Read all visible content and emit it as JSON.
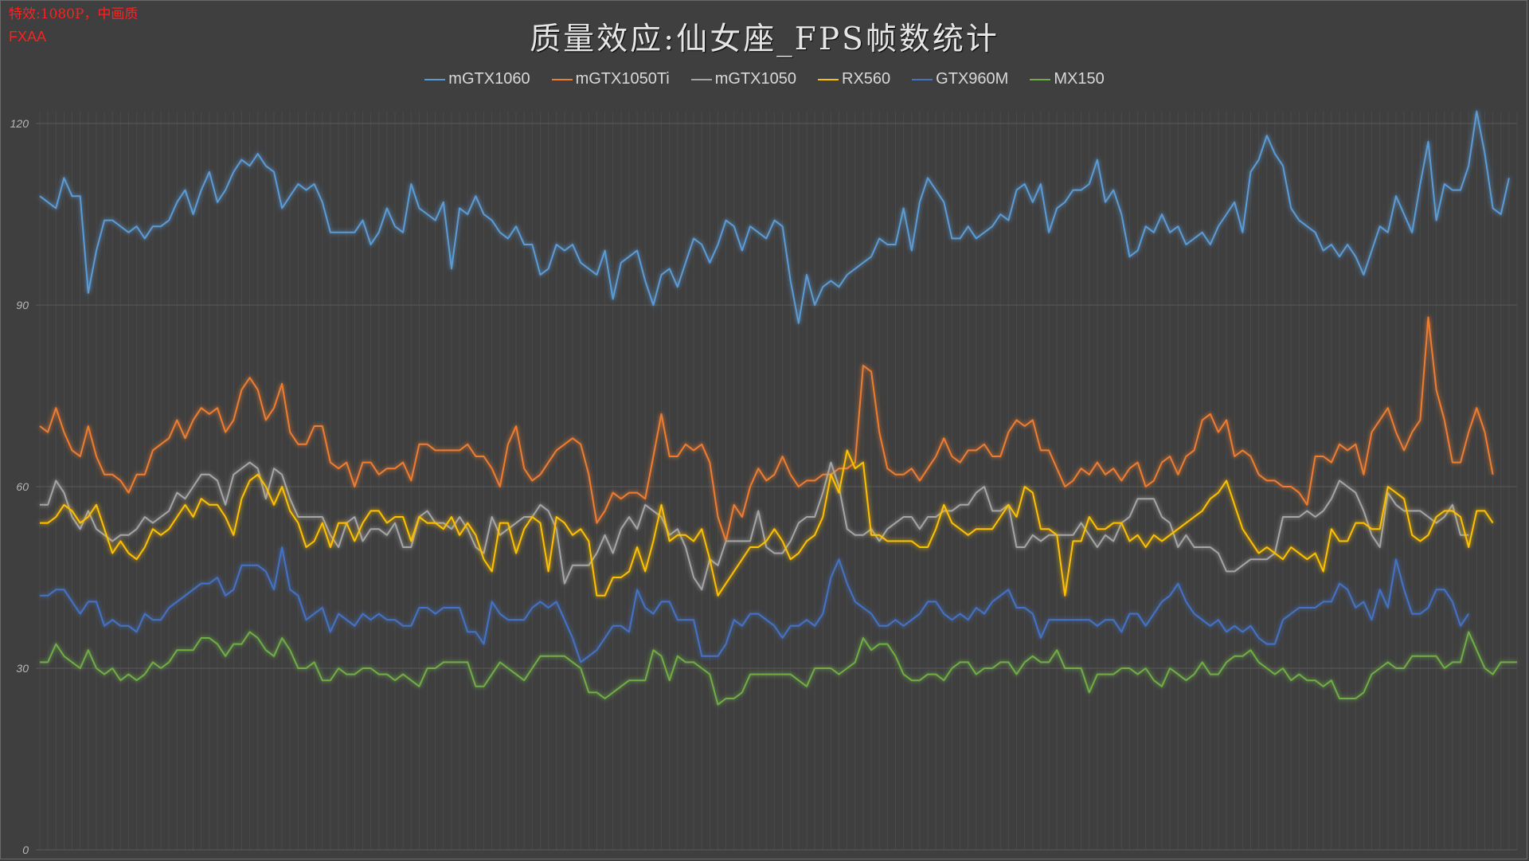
{
  "settings": {
    "line1": "特效:1080P，中画质",
    "line2": "FXAA"
  },
  "chart_data": {
    "type": "line",
    "title": "质量效应:仙女座_FPS帧数统计",
    "xlabel": "",
    "ylabel": "",
    "ylim": [
      0,
      120
    ],
    "yticks": [
      0,
      30,
      60,
      90,
      120
    ],
    "grid": true,
    "legend": "top-center",
    "series": [
      {
        "name": "mGTX1060",
        "color": "#5b9bd5",
        "values": [
          108,
          107,
          106,
          111,
          108,
          108,
          92,
          99,
          104,
          104,
          103,
          102,
          103,
          101,
          103,
          103,
          104,
          107,
          109,
          105,
          109,
          112,
          107,
          109,
          112,
          114,
          113,
          115,
          113,
          112,
          106,
          108,
          110,
          109,
          110,
          107,
          102,
          102,
          102,
          102,
          104,
          100,
          102,
          106,
          103,
          102,
          110,
          106,
          105,
          104,
          107,
          96,
          106,
          105,
          108,
          105,
          104,
          102,
          101,
          103,
          100,
          100,
          95,
          96,
          100,
          99,
          100,
          97,
          96,
          95,
          99,
          91,
          97,
          98,
          99,
          94,
          90,
          95,
          96,
          93,
          97,
          101,
          100,
          97,
          100,
          104,
          103,
          99,
          103,
          102,
          101,
          104,
          103,
          94,
          87,
          95,
          90,
          93,
          94,
          93,
          95,
          96,
          97,
          98,
          101,
          100,
          100,
          106,
          99,
          107,
          111,
          109,
          107,
          101,
          101,
          103,
          101,
          102,
          103,
          105,
          104,
          109,
          110,
          107,
          110,
          102,
          106,
          107,
          109,
          109,
          110,
          114,
          107,
          109,
          105,
          98,
          99,
          103,
          102,
          105,
          102,
          103,
          100,
          101,
          102,
          100,
          103,
          105,
          107,
          102,
          112,
          114,
          118,
          115,
          113,
          106,
          104,
          103,
          102,
          99,
          100,
          98,
          100,
          98,
          95,
          99,
          103,
          102,
          108,
          105,
          102,
          110,
          117,
          104,
          110,
          109,
          109,
          113,
          122,
          115,
          106,
          105,
          111
        ]
      },
      {
        "name": "mGTX1050Ti",
        "color": "#ed7d31",
        "values": [
          70,
          69,
          73,
          69,
          66,
          65,
          70,
          65,
          62,
          62,
          61,
          59,
          62,
          62,
          66,
          67,
          68,
          71,
          68,
          71,
          73,
          72,
          73,
          69,
          71,
          76,
          78,
          76,
          71,
          73,
          77,
          69,
          67,
          67,
          70,
          70,
          64,
          63,
          64,
          60,
          64,
          64,
          62,
          63,
          63,
          64,
          61,
          67,
          67,
          66,
          66,
          66,
          66,
          67,
          65,
          65,
          63,
          60,
          67,
          70,
          63,
          61,
          62,
          64,
          66,
          67,
          68,
          67,
          62,
          54,
          56,
          59,
          58,
          59,
          59,
          58,
          65,
          72,
          65,
          65,
          67,
          66,
          67,
          64,
          55,
          51,
          57,
          55,
          60,
          63,
          61,
          62,
          65,
          62,
          60,
          61,
          61,
          62,
          62,
          63,
          63,
          64,
          80,
          79,
          69,
          63,
          62,
          62,
          63,
          61,
          63,
          65,
          68,
          65,
          64,
          66,
          66,
          67,
          65,
          65,
          69,
          71,
          70,
          71,
          66,
          66,
          63,
          60,
          61,
          63,
          62,
          64,
          62,
          63,
          61,
          63,
          64,
          60,
          61,
          64,
          65,
          62,
          65,
          66,
          71,
          72,
          69,
          71,
          65,
          66,
          65,
          62,
          61,
          61,
          60,
          60,
          59,
          57,
          65,
          65,
          64,
          67,
          66,
          67,
          62,
          69,
          71,
          73,
          69,
          66,
          69,
          71,
          88,
          76,
          71,
          64,
          64,
          69,
          73,
          69,
          62
        ]
      },
      {
        "name": "mGTX1050",
        "color": "#a5a5a5",
        "values": [
          57,
          57,
          61,
          59,
          55,
          53,
          56,
          53,
          52,
          51,
          52,
          52,
          53,
          55,
          54,
          55,
          56,
          59,
          58,
          60,
          62,
          62,
          61,
          57,
          62,
          63,
          64,
          63,
          58,
          63,
          62,
          58,
          55,
          55,
          55,
          55,
          52,
          50,
          54,
          55,
          51,
          53,
          53,
          52,
          54,
          50,
          50,
          55,
          56,
          54,
          54,
          53,
          55,
          53,
          50,
          49,
          55,
          52,
          53,
          54,
          55,
          55,
          57,
          56,
          53,
          44,
          47,
          47,
          47,
          49,
          52,
          49,
          53,
          55,
          53,
          57,
          56,
          55,
          52,
          53,
          50,
          45,
          43,
          48,
          47,
          51,
          51,
          51,
          51,
          56,
          50,
          49,
          49,
          51,
          54,
          55,
          55,
          59,
          64,
          60,
          53,
          52,
          52,
          53,
          51,
          53,
          54,
          55,
          55,
          53,
          55,
          55,
          56,
          56,
          57,
          57,
          59,
          60,
          56,
          56,
          57,
          50,
          50,
          52,
          51,
          52,
          52,
          52,
          52,
          54,
          52,
          50,
          52,
          51,
          54,
          55,
          58,
          58,
          58,
          55,
          54,
          50,
          52,
          50,
          50,
          50,
          49,
          46,
          46,
          47,
          48,
          48,
          48,
          49,
          55,
          55,
          55,
          56,
          55,
          56,
          58,
          61,
          60,
          59,
          56,
          52,
          50,
          59,
          57,
          56,
          56,
          56,
          55,
          54,
          55,
          57,
          52,
          52
        ]
      },
      {
        "name": "RX560",
        "color": "#ffc000",
        "values": [
          54,
          54,
          55,
          57,
          56,
          54,
          55,
          57,
          53,
          49,
          51,
          49,
          48,
          50,
          53,
          52,
          53,
          55,
          57,
          55,
          58,
          57,
          57,
          55,
          52,
          58,
          61,
          62,
          60,
          57,
          60,
          56,
          54,
          50,
          51,
          54,
          50,
          54,
          54,
          51,
          54,
          56,
          56,
          54,
          55,
          55,
          51,
          55,
          54,
          54,
          53,
          55,
          52,
          54,
          52,
          48,
          46,
          54,
          54,
          49,
          53,
          55,
          54,
          46,
          55,
          54,
          52,
          53,
          51,
          42,
          42,
          45,
          45,
          46,
          50,
          46,
          51,
          57,
          51,
          52,
          52,
          51,
          53,
          48,
          42,
          44,
          46,
          48,
          50,
          50,
          51,
          53,
          51,
          48,
          49,
          51,
          52,
          55,
          62,
          59,
          66,
          63,
          64,
          52,
          52,
          51,
          51,
          51,
          51,
          50,
          50,
          53,
          57,
          54,
          53,
          52,
          53,
          53,
          53,
          55,
          57,
          55,
          60,
          59,
          53,
          53,
          52,
          42,
          51,
          51,
          55,
          53,
          53,
          54,
          54,
          51,
          52,
          50,
          52,
          51,
          52,
          53,
          54,
          55,
          56,
          58,
          59,
          61,
          57,
          53,
          51,
          49,
          50,
          49,
          48,
          50,
          49,
          48,
          49,
          46,
          53,
          51,
          51,
          54,
          54,
          53,
          53,
          60,
          59,
          58,
          52,
          51,
          52,
          55,
          56,
          56,
          55,
          50,
          56,
          56,
          54
        ]
      },
      {
        "name": "GTX960M",
        "color": "#4472c4",
        "values": [
          42,
          42,
          43,
          43,
          41,
          39,
          41,
          41,
          37,
          38,
          37,
          37,
          36,
          39,
          38,
          38,
          40,
          41,
          42,
          43,
          44,
          44,
          45,
          42,
          43,
          47,
          47,
          47,
          46,
          43,
          50,
          43,
          42,
          38,
          39,
          40,
          36,
          39,
          38,
          37,
          39,
          38,
          39,
          38,
          38,
          37,
          37,
          40,
          40,
          39,
          40,
          40,
          40,
          36,
          36,
          34,
          41,
          39,
          38,
          38,
          38,
          40,
          41,
          40,
          41,
          38,
          35,
          31,
          32,
          33,
          35,
          37,
          37,
          36,
          43,
          40,
          39,
          41,
          41,
          38,
          38,
          38,
          32,
          32,
          32,
          34,
          38,
          37,
          39,
          39,
          38,
          37,
          35,
          37,
          37,
          38,
          37,
          39,
          45,
          48,
          44,
          41,
          40,
          39,
          37,
          37,
          38,
          37,
          38,
          39,
          41,
          41,
          39,
          38,
          39,
          38,
          40,
          39,
          41,
          42,
          43,
          40,
          40,
          39,
          35,
          38,
          38,
          38,
          38,
          38,
          38,
          37,
          38,
          38,
          36,
          39,
          39,
          37,
          39,
          41,
          42,
          44,
          41,
          39,
          38,
          37,
          38,
          36,
          37,
          36,
          37,
          35,
          34,
          34,
          38,
          39,
          40,
          40,
          40,
          41,
          41,
          44,
          43,
          40,
          41,
          38,
          43,
          40,
          48,
          43,
          39,
          39,
          40,
          43,
          43,
          41,
          37,
          39
        ]
      },
      {
        "name": "MX150",
        "color": "#70ad47",
        "values": [
          31,
          31,
          34,
          32,
          31,
          30,
          33,
          30,
          29,
          30,
          28,
          29,
          28,
          29,
          31,
          30,
          31,
          33,
          33,
          33,
          35,
          35,
          34,
          32,
          34,
          34,
          36,
          35,
          33,
          32,
          35,
          33,
          30,
          30,
          31,
          28,
          28,
          30,
          29,
          29,
          30,
          30,
          29,
          29,
          28,
          29,
          28,
          27,
          30,
          30,
          31,
          31,
          31,
          31,
          27,
          27,
          29,
          31,
          30,
          29,
          28,
          30,
          32,
          32,
          32,
          32,
          31,
          30,
          26,
          26,
          25,
          26,
          27,
          28,
          28,
          28,
          33,
          32,
          28,
          32,
          31,
          31,
          30,
          29,
          24,
          25,
          25,
          26,
          29,
          29,
          29,
          29,
          29,
          29,
          28,
          27,
          30,
          30,
          30,
          29,
          30,
          31,
          35,
          33,
          34,
          34,
          32,
          29,
          28,
          28,
          29,
          29,
          28,
          30,
          31,
          31,
          29,
          30,
          30,
          31,
          31,
          29,
          31,
          32,
          31,
          31,
          33,
          30,
          30,
          30,
          26,
          29,
          29,
          29,
          30,
          30,
          29,
          30,
          28,
          27,
          30,
          29,
          28,
          29,
          31,
          29,
          29,
          31,
          32,
          32,
          33,
          31,
          30,
          29,
          30,
          28,
          29,
          28,
          28,
          27,
          28,
          25,
          25,
          25,
          26,
          29,
          30,
          31,
          30,
          30,
          32,
          32,
          32,
          32,
          30,
          31,
          31,
          36,
          33,
          30,
          29,
          31,
          31,
          31
        ]
      }
    ]
  }
}
